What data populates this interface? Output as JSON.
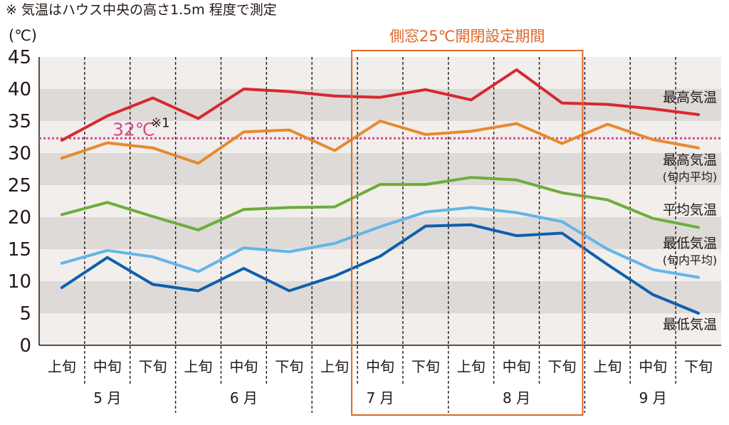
{
  "note": "※ 気温はハウス中央の高さ1.5m 程度で測定",
  "chart_data": {
    "type": "line",
    "ylabel": "(℃)",
    "ylim": [
      0,
      45
    ],
    "yticks": [
      0,
      5,
      10,
      15,
      20,
      25,
      30,
      35,
      40,
      45
    ],
    "grid": "horizontal bands",
    "categories": [
      "上旬",
      "中旬",
      "下旬",
      "上旬",
      "中旬",
      "下旬",
      "上旬",
      "中旬",
      "下旬",
      "上旬",
      "中旬",
      "下旬",
      "上旬",
      "中旬",
      "下旬"
    ],
    "months": [
      {
        "label": "5 月",
        "span": [
          0,
          2
        ]
      },
      {
        "label": "6 月",
        "span": [
          3,
          5
        ]
      },
      {
        "label": "7 月",
        "span": [
          6,
          8
        ]
      },
      {
        "label": "8 月",
        "span": [
          9,
          11
        ]
      },
      {
        "label": "9 月",
        "span": [
          12,
          14
        ]
      }
    ],
    "series": [
      {
        "name": "最高気温",
        "label_lines": [
          "最高気温"
        ],
        "color": "#d7282f",
        "values": [
          32.0,
          35.8,
          38.6,
          35.4,
          40.0,
          39.6,
          38.9,
          38.7,
          39.9,
          38.3,
          43.0,
          37.8,
          37.6,
          36.9,
          36.0
        ]
      },
      {
        "name": "最高気温(旬内平均)",
        "label_lines": [
          "最高気温",
          "(旬内平均)"
        ],
        "color": "#e68a2e",
        "values": [
          29.2,
          31.6,
          30.8,
          28.4,
          33.3,
          33.6,
          30.4,
          35.0,
          32.9,
          33.4,
          34.6,
          31.5,
          34.5,
          32.1,
          30.8
        ]
      },
      {
        "name": "平均気温",
        "label_lines": [
          "平均気温"
        ],
        "color": "#6cad3b",
        "values": [
          20.4,
          22.3,
          20.1,
          18.0,
          21.2,
          21.5,
          21.6,
          25.1,
          25.1,
          26.2,
          25.8,
          23.8,
          22.7,
          19.8,
          18.4
        ]
      },
      {
        "name": "最低気温(旬内平均)",
        "label_lines": [
          "最低気温",
          "(旬内平均)"
        ],
        "color": "#62b5e8",
        "values": [
          12.8,
          14.8,
          13.8,
          11.5,
          15.2,
          14.6,
          15.9,
          18.5,
          20.8,
          21.5,
          20.7,
          19.3,
          15.0,
          11.8,
          10.6
        ]
      },
      {
        "name": "最低気温",
        "label_lines": [
          "最低気温"
        ],
        "color": "#0e5fae",
        "values": [
          9.0,
          13.7,
          9.5,
          8.5,
          12.0,
          8.5,
          10.8,
          13.9,
          18.6,
          18.8,
          17.1,
          17.5,
          12.6,
          7.9,
          5.0
        ]
      }
    ],
    "reference_line": {
      "value": 32.3,
      "label": "32℃",
      "note": "※1",
      "color": "#d6498c"
    },
    "highlight": {
      "label": "側窓25℃開閉設定期間",
      "span": [
        7,
        11
      ],
      "color": "#e0672a"
    }
  }
}
